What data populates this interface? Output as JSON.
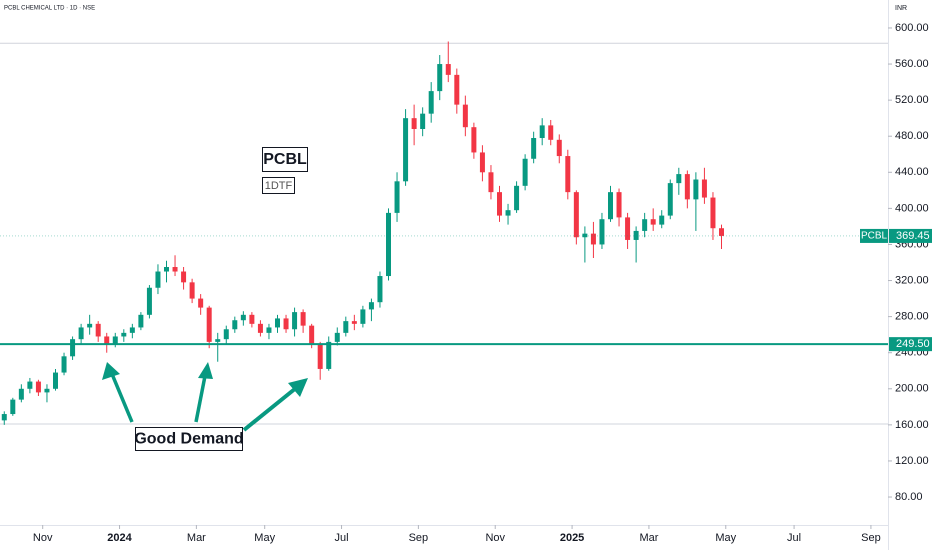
{
  "chart_data": {
    "type": "candlestick",
    "title": "PCBL CHEMICAL LTD · 1D · NSE",
    "currency": "INR",
    "up_color": "#089981",
    "down_color": "#f23645",
    "candles": [
      [
        165,
        175,
        160,
        172
      ],
      [
        172,
        190,
        170,
        188
      ],
      [
        188,
        205,
        185,
        200
      ],
      [
        200,
        212,
        195,
        208
      ],
      [
        208,
        210,
        192,
        196
      ],
      [
        196,
        205,
        185,
        200
      ],
      [
        200,
        222,
        198,
        218
      ],
      [
        218,
        240,
        215,
        236
      ],
      [
        236,
        258,
        232,
        255
      ],
      [
        255,
        272,
        250,
        268
      ],
      [
        268,
        282,
        260,
        272
      ],
      [
        272,
        275,
        252,
        258
      ],
      [
        258,
        262,
        240,
        250
      ],
      [
        250,
        262,
        246,
        258
      ],
      [
        258,
        266,
        252,
        262
      ],
      [
        262,
        272,
        256,
        268
      ],
      [
        268,
        285,
        265,
        282
      ],
      [
        282,
        315,
        278,
        312
      ],
      [
        312,
        338,
        305,
        330
      ],
      [
        330,
        342,
        318,
        335
      ],
      [
        335,
        348,
        325,
        330
      ],
      [
        330,
        335,
        310,
        318
      ],
      [
        318,
        322,
        295,
        300
      ],
      [
        300,
        305,
        282,
        290
      ],
      [
        290,
        292,
        245,
        252
      ],
      [
        252,
        262,
        230,
        255
      ],
      [
        255,
        270,
        250,
        266
      ],
      [
        266,
        280,
        262,
        276
      ],
      [
        276,
        286,
        270,
        282
      ],
      [
        282,
        285,
        268,
        272
      ],
      [
        272,
        276,
        258,
        262
      ],
      [
        262,
        272,
        255,
        268
      ],
      [
        268,
        282,
        262,
        278
      ],
      [
        278,
        282,
        262,
        266
      ],
      [
        266,
        290,
        258,
        285
      ],
      [
        285,
        288,
        262,
        270
      ],
      [
        270,
        272,
        245,
        250
      ],
      [
        250,
        252,
        210,
        222
      ],
      [
        222,
        258,
        220,
        252
      ],
      [
        252,
        268,
        248,
        262
      ],
      [
        262,
        280,
        258,
        275
      ],
      [
        275,
        282,
        265,
        272
      ],
      [
        272,
        292,
        268,
        288
      ],
      [
        288,
        300,
        275,
        296
      ],
      [
        296,
        330,
        290,
        325
      ],
      [
        325,
        400,
        320,
        395
      ],
      [
        395,
        440,
        385,
        430
      ],
      [
        430,
        510,
        425,
        500
      ],
      [
        500,
        515,
        470,
        488
      ],
      [
        488,
        512,
        480,
        505
      ],
      [
        505,
        540,
        495,
        530
      ],
      [
        530,
        570,
        520,
        560
      ],
      [
        560,
        585,
        540,
        548
      ],
      [
        548,
        555,
        505,
        515
      ],
      [
        515,
        525,
        480,
        490
      ],
      [
        490,
        495,
        455,
        462
      ],
      [
        462,
        470,
        430,
        440
      ],
      [
        440,
        448,
        410,
        418
      ],
      [
        418,
        425,
        385,
        392
      ],
      [
        392,
        405,
        382,
        398
      ],
      [
        398,
        430,
        395,
        425
      ],
      [
        425,
        460,
        420,
        455
      ],
      [
        455,
        485,
        450,
        478
      ],
      [
        478,
        500,
        470,
        492
      ],
      [
        492,
        498,
        470,
        476
      ],
      [
        476,
        482,
        450,
        458
      ],
      [
        458,
        465,
        410,
        418
      ],
      [
        418,
        420,
        360,
        368
      ],
      [
        368,
        380,
        340,
        372
      ],
      [
        372,
        385,
        345,
        360
      ],
      [
        360,
        395,
        355,
        388
      ],
      [
        388,
        425,
        385,
        418
      ],
      [
        418,
        422,
        380,
        390
      ],
      [
        390,
        395,
        355,
        365
      ],
      [
        365,
        380,
        340,
        375
      ],
      [
        375,
        395,
        368,
        388
      ],
      [
        388,
        400,
        375,
        382
      ],
      [
        382,
        398,
        378,
        392
      ],
      [
        392,
        432,
        388,
        428
      ],
      [
        428,
        445,
        415,
        438
      ],
      [
        438,
        442,
        400,
        410
      ],
      [
        410,
        440,
        375,
        432
      ],
      [
        432,
        445,
        405,
        412
      ],
      [
        412,
        418,
        365,
        378
      ],
      [
        378,
        382,
        355,
        369.45
      ]
    ],
    "xlim": [
      0,
      104
    ],
    "xticks": [
      {
        "value": 5,
        "label": "Nov"
      },
      {
        "value": 14,
        "label": "2024"
      },
      {
        "value": 23,
        "label": "Mar"
      },
      {
        "value": 31,
        "label": "May"
      },
      {
        "value": 40,
        "label": "Jul"
      },
      {
        "value": 49,
        "label": "Sep"
      },
      {
        "value": 58,
        "label": "Nov"
      },
      {
        "value": 67,
        "label": "2025"
      },
      {
        "value": 76,
        "label": "Mar"
      },
      {
        "value": 85,
        "label": "May"
      },
      {
        "value": 93,
        "label": "Jul"
      },
      {
        "value": 102,
        "label": "Sep"
      }
    ],
    "ylim": [
      49,
      631
    ],
    "yticks": [
      {
        "value": 80,
        "label": "80.00"
      },
      {
        "value": 120,
        "label": "120.00"
      },
      {
        "value": 160,
        "label": "160.00"
      },
      {
        "value": 200,
        "label": "200.00"
      },
      {
        "value": 240,
        "label": "240.00"
      },
      {
        "value": 280,
        "label": "280.00"
      },
      {
        "value": 320,
        "label": "320.00"
      },
      {
        "value": 360,
        "label": "360.00"
      },
      {
        "value": 400,
        "label": "400.00"
      },
      {
        "value": 440,
        "label": "440.00"
      },
      {
        "value": 480,
        "label": "480.00"
      },
      {
        "value": 520,
        "label": "520.00"
      },
      {
        "value": 560,
        "label": "560.00"
      },
      {
        "value": 600,
        "label": "600.00"
      }
    ],
    "support": {
      "value": 249.5,
      "label": "249.50",
      "color": "#089981"
    },
    "reference_lines": [
      583,
      161
    ],
    "last": {
      "name": "PCBL",
      "value": 369.45,
      "label": "369.45"
    },
    "annotations": [
      "PCBL",
      "1DTF",
      "Good Demand"
    ]
  }
}
